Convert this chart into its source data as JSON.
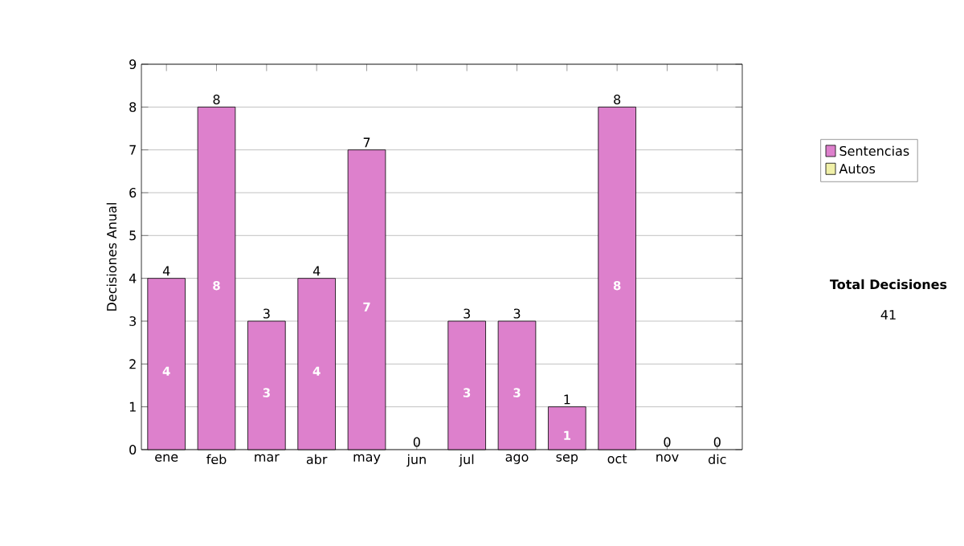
{
  "chart_data": {
    "type": "bar",
    "ylabel": "Decisiones Anual",
    "categories": [
      "ene",
      "feb",
      "mar",
      "abr",
      "may",
      "jun",
      "jul",
      "ago",
      "sep",
      "oct",
      "nov",
      "dic"
    ],
    "series": [
      {
        "name": "Sentencias",
        "color": "#dd80cc",
        "values": [
          4,
          8,
          3,
          4,
          7,
          0,
          3,
          3,
          1,
          8,
          0,
          0
        ],
        "value_labels": [
          "4",
          "8",
          "3",
          "4",
          "7",
          null,
          "3",
          "3",
          "1",
          "8",
          null,
          null
        ]
      },
      {
        "name": "Autos",
        "color": "#f0f0a8",
        "values": [
          0,
          0,
          0,
          0,
          0,
          0,
          0,
          0,
          0,
          0,
          0,
          0
        ]
      }
    ],
    "stacked": true,
    "totals": [
      "4",
      "8",
      "3",
      "4",
      "7",
      "0",
      "3",
      "3",
      "1",
      "8",
      "0",
      "0"
    ],
    "ylim": [
      0,
      9
    ],
    "yticks": [
      0,
      1,
      2,
      3,
      4,
      5,
      6,
      7,
      8,
      9
    ],
    "grid": "y",
    "legend": "right",
    "annotations": [
      "Total Decisiones",
      "41"
    ]
  }
}
